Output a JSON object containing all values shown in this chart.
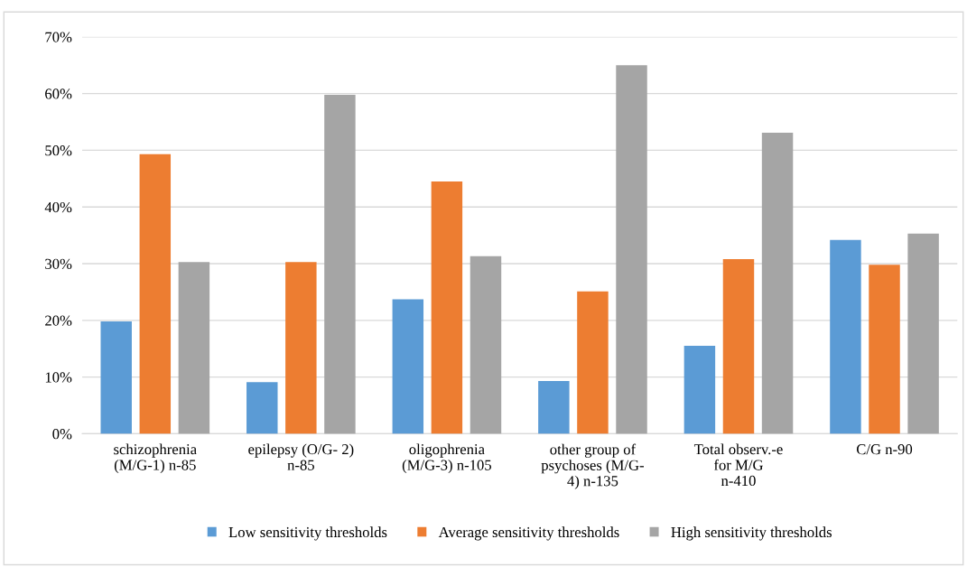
{
  "chart_data": {
    "type": "bar",
    "categories": [
      "schizophrenia\n(M/G-1) n-85",
      "epilepsy (O/G- 2)\nn-85",
      "oligophrenia\n(M/G-3) n-105",
      "other group of\npsychoses (M/G-\n4) n-135",
      "Total observ.-e\nfor M/G\nn-410",
      "C/G n-90"
    ],
    "series": [
      {
        "name": "Low sensitivity thresholds",
        "color": "#5b9bd5",
        "values": [
          19.8,
          9.1,
          23.7,
          9.3,
          15.5,
          34.2
        ]
      },
      {
        "name": "Average sensitivity thresholds",
        "color": "#ed7d31",
        "values": [
          49.3,
          30.3,
          44.5,
          25.1,
          30.8,
          29.8
        ]
      },
      {
        "name": "High sensitivity thresholds",
        "color": "#a5a5a5",
        "values": [
          30.3,
          59.8,
          31.3,
          65.0,
          53.1,
          35.3
        ]
      }
    ],
    "ylim": [
      0,
      70
    ],
    "yticks": [
      {
        "value": 0,
        "label": "0%"
      },
      {
        "value": 10,
        "label": "10%"
      },
      {
        "value": 20,
        "label": "20%"
      },
      {
        "value": 30,
        "label": "30%"
      },
      {
        "value": 40,
        "label": "40%"
      },
      {
        "value": 50,
        "label": "50%"
      },
      {
        "value": 60,
        "label": "60%"
      },
      {
        "value": 70,
        "label": "70%"
      }
    ],
    "grid": "y",
    "legend": "bottom"
  }
}
